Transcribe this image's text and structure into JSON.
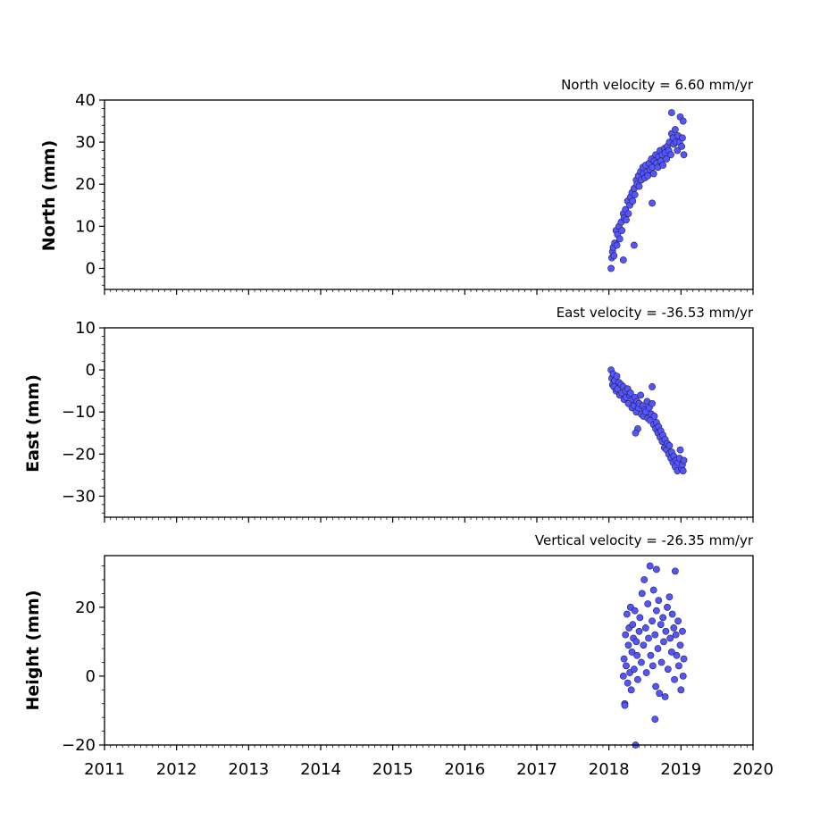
{
  "chart_data": [
    {
      "type": "scatter",
      "title": "North velocity = 6.60 mm/yr",
      "xlabel": "",
      "ylabel": "North (mm)",
      "ylim": [
        -5,
        40
      ],
      "yticks": [
        0,
        10,
        20,
        30,
        40
      ],
      "xlim": [
        2011,
        2020
      ],
      "marker_color": "#5555ff",
      "marker_edge": "#222244",
      "series": [
        {
          "x": [
            2018.03,
            2018.04,
            2018.05,
            2018.06,
            2018.07,
            2018.08,
            2018.1,
            2018.11,
            2018.12,
            2018.14,
            2018.15,
            2018.17,
            2018.18,
            2018.2,
            2018.21,
            2018.23,
            2018.24,
            2018.26,
            2018.27,
            2018.29,
            2018.3,
            2018.32,
            2018.33,
            2018.35,
            2018.36,
            2018.38,
            2018.39,
            2018.41,
            2018.42,
            2018.44,
            2018.45,
            2018.47,
            2018.48,
            2018.5,
            2018.51,
            2018.53,
            2018.54,
            2018.56,
            2018.57,
            2018.59,
            2018.6,
            2018.62,
            2018.63,
            2018.65,
            2018.66,
            2018.68,
            2018.69,
            2018.71,
            2018.72,
            2018.74,
            2018.75,
            2018.77,
            2018.78,
            2018.8,
            2018.81,
            2018.83,
            2018.84,
            2018.86,
            2018.87,
            2018.89,
            2018.9,
            2018.92,
            2018.93,
            2018.95,
            2018.96,
            2018.98,
            2018.99,
            2019.01,
            2019.02,
            2019.04,
            2018.87,
            2018.6,
            2018.35,
            2018.2,
            2019.03
          ],
          "y": [
            0.0,
            2.5,
            4.0,
            5.0,
            3.0,
            6.0,
            9.0,
            5.5,
            8.0,
            10.0,
            7.0,
            11.0,
            9.0,
            13.0,
            12.0,
            14.0,
            11.5,
            16.0,
            13.0,
            15.0,
            17.0,
            18.0,
            16.0,
            19.0,
            17.5,
            21.0,
            20.0,
            22.0,
            19.5,
            23.0,
            21.0,
            24.0,
            22.5,
            21.5,
            24.5,
            23.0,
            22.0,
            25.0,
            23.5,
            26.0,
            24.0,
            22.5,
            25.5,
            27.0,
            25.0,
            24.0,
            26.5,
            28.0,
            25.5,
            27.0,
            24.5,
            28.5,
            27.5,
            26.0,
            29.0,
            28.0,
            30.0,
            27.0,
            32.0,
            31.0,
            29.5,
            33.0,
            30.0,
            28.0,
            31.5,
            30.0,
            36.0,
            29.0,
            31.0,
            27.0,
            37.0,
            15.5,
            5.5,
            2.0,
            35.0
          ]
        }
      ]
    },
    {
      "type": "scatter",
      "title": "East velocity = -36.53 mm/yr",
      "xlabel": "",
      "ylabel": "East (mm)",
      "ylim": [
        -35,
        10
      ],
      "yticks": [
        -30,
        -20,
        -10,
        0,
        10
      ],
      "xlim": [
        2011,
        2020
      ],
      "marker_color": "#5555ff",
      "marker_edge": "#222244",
      "series": [
        {
          "x": [
            2018.03,
            2018.04,
            2018.05,
            2018.06,
            2018.07,
            2018.08,
            2018.1,
            2018.11,
            2018.12,
            2018.14,
            2018.15,
            2018.17,
            2018.18,
            2018.2,
            2018.21,
            2018.23,
            2018.24,
            2018.26,
            2018.27,
            2018.29,
            2018.3,
            2018.32,
            2018.33,
            2018.35,
            2018.36,
            2018.38,
            2018.39,
            2018.41,
            2018.42,
            2018.44,
            2018.45,
            2018.47,
            2018.48,
            2018.5,
            2018.51,
            2018.53,
            2018.54,
            2018.56,
            2018.57,
            2018.59,
            2018.6,
            2018.62,
            2018.63,
            2018.65,
            2018.66,
            2018.68,
            2018.69,
            2018.71,
            2018.72,
            2018.74,
            2018.75,
            2018.77,
            2018.78,
            2018.8,
            2018.81,
            2018.83,
            2018.84,
            2018.86,
            2018.87,
            2018.89,
            2018.9,
            2018.92,
            2018.93,
            2018.95,
            2018.96,
            2018.98,
            2018.99,
            2019.01,
            2019.02,
            2019.04,
            2018.4,
            2018.37,
            2019.03,
            2018.6
          ],
          "y": [
            0.0,
            -2.0,
            -3.5,
            -1.0,
            -4.0,
            -2.5,
            -5.0,
            -1.5,
            -4.5,
            -3.0,
            -6.0,
            -3.5,
            -5.5,
            -4.0,
            -7.0,
            -5.0,
            -6.5,
            -4.5,
            -8.0,
            -6.0,
            -5.5,
            -9.0,
            -7.0,
            -8.5,
            -6.5,
            -10.0,
            -7.5,
            -9.0,
            -8.0,
            -6.0,
            -10.5,
            -8.5,
            -11.0,
            -9.5,
            -10.0,
            -7.5,
            -11.5,
            -9.0,
            -12.0,
            -10.5,
            -8.0,
            -13.0,
            -11.0,
            -14.0,
            -12.5,
            -15.0,
            -13.5,
            -16.0,
            -14.5,
            -17.0,
            -15.5,
            -18.5,
            -16.5,
            -19.0,
            -17.5,
            -20.0,
            -18.0,
            -21.0,
            -19.5,
            -22.0,
            -20.5,
            -23.0,
            -21.5,
            -24.0,
            -22.0,
            -21.0,
            -19.0,
            -23.5,
            -22.5,
            -21.5,
            -14.0,
            -15.0,
            -24.0,
            -4.0
          ]
        }
      ]
    },
    {
      "type": "scatter",
      "title": "Vertical velocity = -26.35 mm/yr",
      "xlabel": "",
      "ylabel": "Height (mm)",
      "ylim": [
        -20,
        35
      ],
      "yticks": [
        -20,
        0,
        20
      ],
      "xlim": [
        2011,
        2020
      ],
      "xticks": [
        2011,
        2012,
        2013,
        2014,
        2015,
        2016,
        2017,
        2018,
        2019,
        2020
      ],
      "marker_color": "#5555ff",
      "marker_edge": "#222244",
      "series": [
        {
          "x": [
            2018.2,
            2018.21,
            2018.22,
            2018.23,
            2018.24,
            2018.25,
            2018.26,
            2018.27,
            2018.28,
            2018.29,
            2018.3,
            2018.31,
            2018.32,
            2018.33,
            2018.34,
            2018.35,
            2018.36,
            2018.38,
            2018.39,
            2018.4,
            2018.42,
            2018.43,
            2018.45,
            2018.46,
            2018.48,
            2018.49,
            2018.51,
            2018.52,
            2018.54,
            2018.55,
            2018.57,
            2018.58,
            2018.6,
            2018.61,
            2018.62,
            2018.64,
            2018.65,
            2018.66,
            2018.68,
            2018.69,
            2018.7,
            2018.72,
            2018.73,
            2018.75,
            2018.76,
            2018.78,
            2018.79,
            2018.81,
            2018.82,
            2018.84,
            2018.85,
            2018.87,
            2018.88,
            2018.9,
            2018.91,
            2018.93,
            2018.94,
            2018.96,
            2018.97,
            2018.99,
            2019.0,
            2019.02,
            2019.03,
            2019.04,
            2018.37,
            2018.64,
            2018.66,
            2018.92,
            2018.22
          ],
          "y": [
            0.0,
            5.0,
            -8.0,
            12.0,
            3.0,
            18.0,
            -2.0,
            9.0,
            14.0,
            1.0,
            20.0,
            -4.0,
            7.0,
            15.0,
            11.0,
            2.0,
            19.0,
            10.0,
            6.0,
            -1.0,
            13.0,
            17.0,
            4.0,
            24.0,
            9.0,
            28.0,
            14.0,
            1.0,
            21.0,
            11.0,
            32.0,
            6.0,
            16.0,
            3.0,
            25.0,
            12.0,
            -3.0,
            19.0,
            8.0,
            22.0,
            -5.0,
            15.0,
            4.0,
            17.0,
            10.0,
            -6.0,
            13.0,
            20.0,
            2.0,
            23.0,
            11.0,
            7.0,
            18.0,
            14.0,
            -1.0,
            12.0,
            6.0,
            16.0,
            3.0,
            9.0,
            -4.0,
            13.0,
            0.0,
            5.0,
            -20.0,
            -12.5,
            31.0,
            30.5,
            -8.5
          ]
        }
      ]
    }
  ]
}
